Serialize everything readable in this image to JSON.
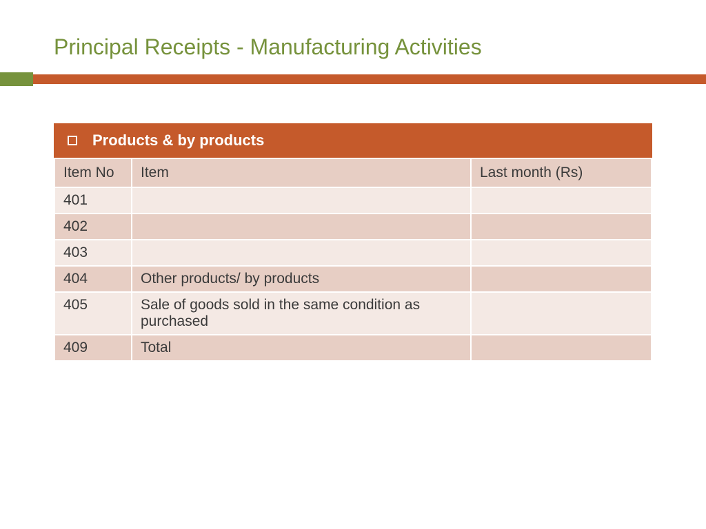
{
  "title": {
    "text": "Principal Receipts - Manufacturing Activities",
    "color": "#76923c",
    "fontsize": 32
  },
  "divider": {
    "olive_color": "#76923c",
    "orange_color": "#c55a2b"
  },
  "section": {
    "header_text": "Products & by products",
    "header_bg": "#c55a2b",
    "header_text_color": "#ffffff"
  },
  "table": {
    "header_bg": "#e7cec4",
    "row_odd_bg": "#f4e9e4",
    "row_even_bg": "#e7cec4",
    "text_color": "#3a3a3a",
    "columns": [
      {
        "label": "Item No"
      },
      {
        "label": "Item"
      },
      {
        "label": "Last month (Rs)"
      }
    ],
    "rows": [
      {
        "itemno": "401",
        "item": "",
        "last": ""
      },
      {
        "itemno": "402",
        "item": "",
        "last": ""
      },
      {
        "itemno": "403",
        "item": "",
        "last": ""
      },
      {
        "itemno": "404",
        "item": "Other products/ by products",
        "last": ""
      },
      {
        "itemno": "405",
        "item": "Sale of goods sold in the same condition as purchased",
        "last": ""
      },
      {
        "itemno": "409",
        "item": "Total",
        "last": ""
      }
    ]
  }
}
